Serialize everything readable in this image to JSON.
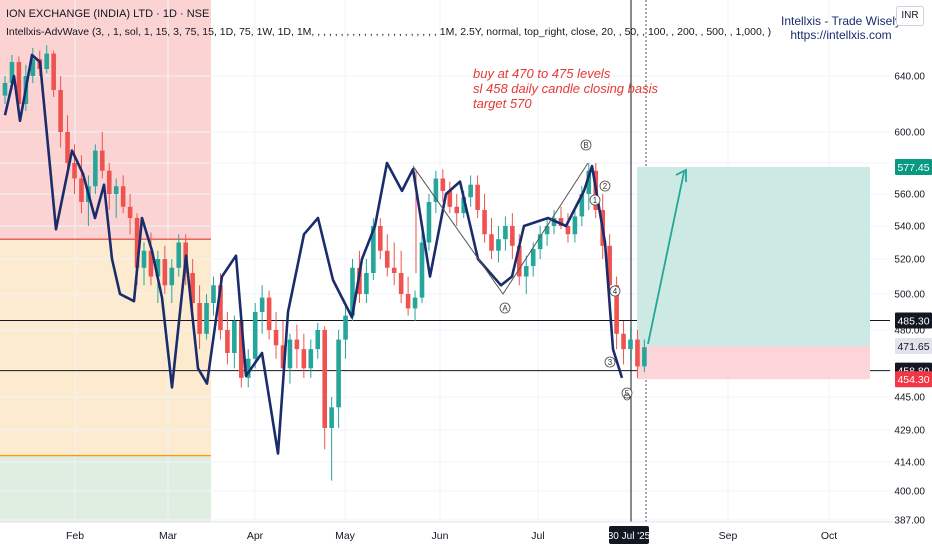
{
  "header": {
    "title": "ION EXCHANGE (INDIA) LTD · 1D · NSE",
    "indicator": "Intellxis-AdvWave (3, , 1, sol, 1, 15, 3, 75, 15, 1D, 75, 1W, 1D, 1M, , , , , , , , , , , , , , , , , , , , , , 1M, 2.5Y, normal, top_right, close, 20, , 50, , 100, , 200, , 500, , 1,000, )"
  },
  "brand": {
    "name": "Intellxis - Trade Wisely",
    "url": "https://intellxis.com"
  },
  "currency_button": "INR",
  "annotation": {
    "lines": [
      "buy at 470 to 475 levels",
      "sl 458 daily candle closing basis",
      "target 570"
    ]
  },
  "colors": {
    "up": "#26a69a",
    "down": "#ef5350",
    "wave": "#1a2c6b",
    "zone_red": "#fbd3d3",
    "zone_orange": "#fdebd0",
    "zone_green": "#dfeee0",
    "target_zone": "#cce9e4",
    "stop_zone": "#fbd5da",
    "arrow": "#22a698",
    "note": "#e53935"
  },
  "chart_data": {
    "type": "candlestick",
    "title": "ION EXCHANGE (INDIA) LTD · 1D · NSE",
    "x_labels": [
      "Feb",
      "Mar",
      "Apr",
      "May",
      "Jun",
      "Jul",
      "30 Jul '25",
      "Sep",
      "Oct"
    ],
    "y_ticks": [
      640,
      600,
      580,
      560,
      540,
      520,
      500,
      480,
      445,
      429,
      414,
      400,
      387
    ],
    "y_tick_labels": [
      "640.00",
      "600.00",
      "580.00",
      "560.00",
      "540.00",
      "520.00",
      "500.00",
      "480.00",
      "445.00",
      "429.00",
      "414.00",
      "400.00",
      "387.00"
    ],
    "price_labels": [
      {
        "text": "577.45",
        "value": 577.45,
        "style": "green"
      },
      {
        "text": "485.30",
        "value": 485.3,
        "style": "dark"
      },
      {
        "text": "471.65",
        "value": 471.65,
        "style": "grey"
      },
      {
        "text": "458.80",
        "value": 458.8,
        "style": "dark"
      },
      {
        "text": "454.30",
        "value": 454.3,
        "style": "red"
      }
    ],
    "horizontal_lines": [
      {
        "value": 485.3,
        "color": "#131722"
      },
      {
        "value": 458.8,
        "color": "#131722"
      },
      {
        "value": 532,
        "color": "#e53935"
      },
      {
        "value": 417,
        "color": "#ff9800"
      }
    ],
    "zones": [
      {
        "name": "resistance",
        "from": 532,
        "to": 710
      },
      {
        "name": "demand",
        "from": 417,
        "to": 532
      },
      {
        "name": "support",
        "from": 380,
        "to": 417
      }
    ],
    "position": {
      "entry": 471.65,
      "target": 577.45,
      "stop": 454.3
    },
    "wave_labels": [
      "A",
      "B",
      "1",
      "2",
      "3",
      "4",
      "5"
    ],
    "candles_ohlc": [
      [
        626,
        640,
        620,
        635
      ],
      [
        635,
        655,
        630,
        650
      ],
      [
        650,
        654,
        615,
        620
      ],
      [
        620,
        648,
        615,
        640
      ],
      [
        640,
        660,
        635,
        652
      ],
      [
        652,
        658,
        640,
        645
      ],
      [
        645,
        662,
        642,
        656
      ],
      [
        656,
        658,
        625,
        630
      ],
      [
        630,
        640,
        590,
        600
      ],
      [
        600,
        612,
        575,
        580
      ],
      [
        580,
        592,
        560,
        570
      ],
      [
        570,
        585,
        548,
        555
      ],
      [
        555,
        572,
        540,
        565
      ],
      [
        565,
        592,
        560,
        588
      ],
      [
        588,
        600,
        570,
        575
      ],
      [
        575,
        580,
        550,
        560
      ],
      [
        560,
        570,
        545,
        565
      ],
      [
        565,
        572,
        548,
        552
      ],
      [
        552,
        560,
        535,
        545
      ],
      [
        545,
        548,
        505,
        515
      ],
      [
        515,
        530,
        505,
        525
      ],
      [
        525,
        536,
        505,
        510
      ],
      [
        510,
        525,
        495,
        520
      ],
      [
        520,
        528,
        500,
        505
      ],
      [
        505,
        520,
        495,
        515
      ],
      [
        515,
        535,
        510,
        530
      ],
      [
        530,
        535,
        505,
        512
      ],
      [
        512,
        520,
        490,
        495
      ],
      [
        495,
        505,
        470,
        478
      ],
      [
        478,
        500,
        475,
        495
      ],
      [
        495,
        510,
        488,
        505
      ],
      [
        505,
        512,
        475,
        480
      ],
      [
        480,
        490,
        462,
        468
      ],
      [
        468,
        488,
        460,
        485
      ],
      [
        485,
        492,
        450,
        455
      ],
      [
        455,
        470,
        450,
        465
      ],
      [
        465,
        495,
        460,
        490
      ],
      [
        490,
        505,
        478,
        498
      ],
      [
        498,
        502,
        475,
        480
      ],
      [
        480,
        490,
        465,
        472
      ],
      [
        472,
        485,
        455,
        460
      ],
      [
        460,
        478,
        452,
        475
      ],
      [
        475,
        483,
        460,
        470
      ],
      [
        470,
        478,
        455,
        460
      ],
      [
        460,
        475,
        455,
        470
      ],
      [
        470,
        484,
        465,
        480
      ],
      [
        480,
        482,
        420,
        430
      ],
      [
        430,
        445,
        405,
        440
      ],
      [
        440,
        480,
        430,
        475
      ],
      [
        475,
        495,
        465,
        488
      ],
      [
        488,
        520,
        485,
        515
      ],
      [
        515,
        525,
        495,
        500
      ],
      [
        500,
        520,
        495,
        512
      ],
      [
        512,
        545,
        508,
        540
      ],
      [
        540,
        545,
        520,
        525
      ],
      [
        525,
        535,
        510,
        515
      ],
      [
        515,
        530,
        505,
        512
      ],
      [
        512,
        525,
        495,
        500
      ],
      [
        500,
        510,
        488,
        492
      ],
      [
        492,
        502,
        485,
        498
      ],
      [
        498,
        540,
        495,
        530
      ],
      [
        530,
        560,
        525,
        555
      ],
      [
        555,
        575,
        548,
        570
      ],
      [
        570,
        576,
        555,
        562
      ],
      [
        562,
        568,
        548,
        552
      ],
      [
        552,
        560,
        540,
        548
      ],
      [
        548,
        562,
        545,
        558
      ],
      [
        558,
        572,
        552,
        566
      ],
      [
        566,
        572,
        545,
        550
      ],
      [
        550,
        560,
        530,
        535
      ],
      [
        535,
        545,
        520,
        525
      ],
      [
        525,
        540,
        518,
        532
      ],
      [
        532,
        546,
        525,
        540
      ],
      [
        540,
        548,
        520,
        528
      ],
      [
        528,
        535,
        505,
        510
      ],
      [
        510,
        522,
        500,
        516
      ],
      [
        516,
        530,
        510,
        526
      ],
      [
        526,
        540,
        520,
        535
      ],
      [
        535,
        545,
        528,
        540
      ],
      [
        540,
        550,
        535,
        545
      ],
      [
        545,
        552,
        538,
        540
      ],
      [
        540,
        548,
        530,
        535
      ],
      [
        535,
        550,
        530,
        546
      ],
      [
        546,
        565,
        540,
        560
      ],
      [
        560,
        580,
        550,
        575
      ],
      [
        575,
        580,
        545,
        550
      ],
      [
        550,
        560,
        520,
        528
      ],
      [
        528,
        535,
        500,
        505
      ],
      [
        505,
        510,
        470,
        478
      ],
      [
        478,
        485,
        462,
        470
      ],
      [
        470,
        482,
        465,
        475
      ],
      [
        475,
        480,
        455,
        461
      ],
      [
        461,
        475,
        458,
        471
      ]
    ]
  }
}
